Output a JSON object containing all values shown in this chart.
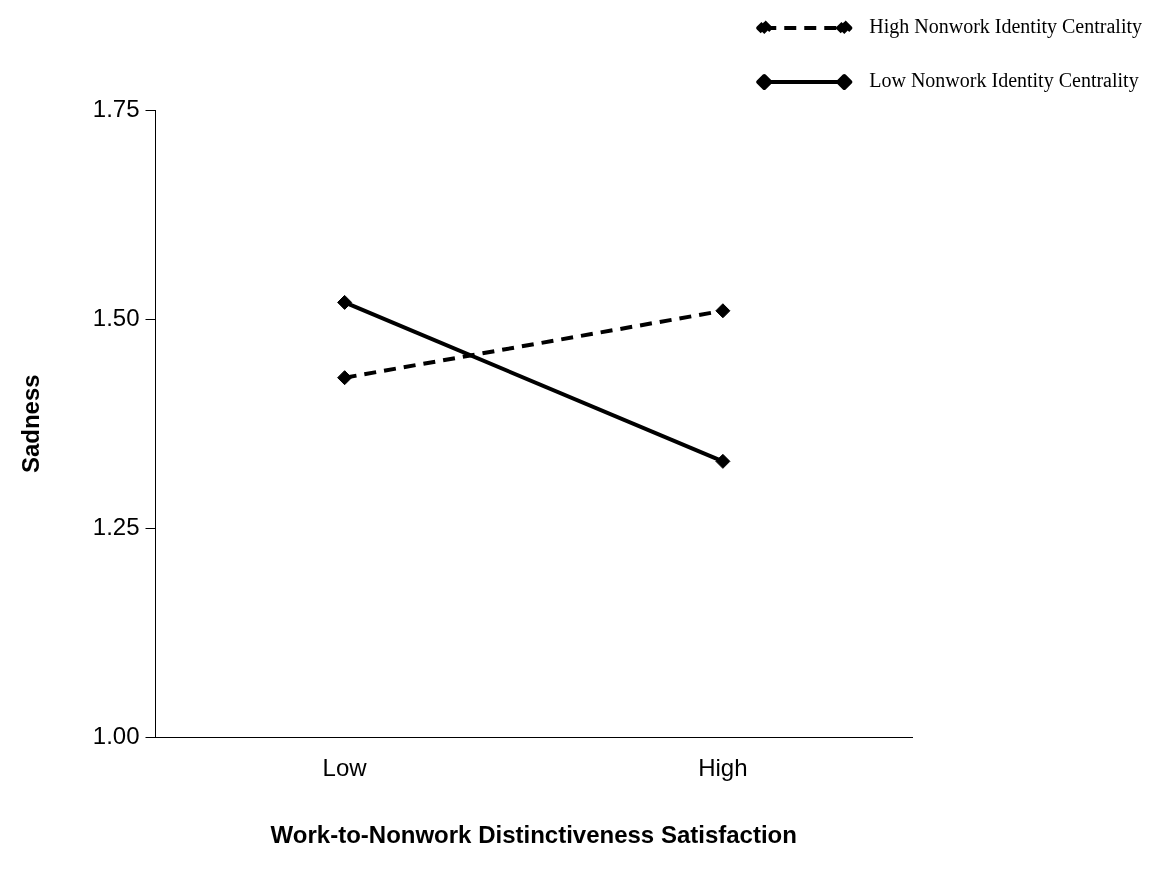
{
  "chart_data": {
    "type": "line",
    "xlabel": "Work-to-Nonwork Distinctiveness Satisfaction",
    "ylabel": "Sadness",
    "categories": [
      "Low",
      "High"
    ],
    "series": [
      {
        "name": "High Nonwork Identity Centrality",
        "color": "#000000",
        "values": [
          1.43,
          1.51
        ],
        "line_style": "dashed"
      },
      {
        "name": "Low Nonwork Identity Centrality",
        "color": "#000000",
        "values": [
          1.52,
          1.33
        ],
        "line_style": "solid"
      }
    ],
    "ylim": [
      1.0,
      1.75
    ],
    "yticks": [
      {
        "value": 1.0,
        "label": "1.00"
      },
      {
        "value": 1.25,
        "label": "1.25"
      },
      {
        "value": 1.5,
        "label": "1.50"
      },
      {
        "value": 1.75,
        "label": "1.75"
      }
    ],
    "grid": false,
    "legend": "top right",
    "marker": "diamond"
  }
}
